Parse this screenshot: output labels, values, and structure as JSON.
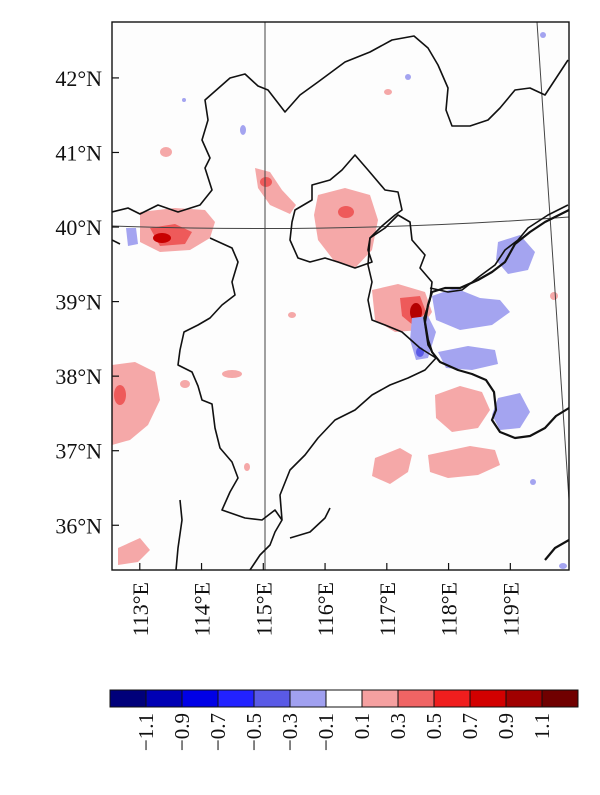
{
  "map": {
    "lat_labels": [
      "42°N",
      "41°N",
      "40°N",
      "39°N",
      "38°N",
      "37°N",
      "36°N"
    ],
    "lon_labels": [
      "113°E",
      "114°E",
      "115°E",
      "116°E",
      "117°E",
      "118°E",
      "119°E"
    ],
    "lat_values": [
      42,
      41,
      40,
      39,
      38,
      37,
      36
    ],
    "lon_values": [
      113,
      114,
      115,
      116,
      117,
      118,
      119
    ],
    "extent": {
      "lon_min": 112.55,
      "lon_max": 119.95,
      "lat_min": 35.4,
      "lat_max": 42.75
    },
    "graticule_lines": {
      "lon": 115,
      "lat": 40
    }
  },
  "colorbar": {
    "labels": [
      "−1.1",
      "−0.9",
      "−0.7",
      "−0.5",
      "−0.3",
      "−0.1",
      "0.1",
      "0.3",
      "0.5",
      "0.7",
      "0.9",
      "1.1"
    ],
    "colors": [
      "#00007a",
      "#0000b4",
      "#0000e6",
      "#2222ff",
      "#5a5ae6",
      "#a0a0f0",
      "#ffffff",
      "#f5a0a0",
      "#f06464",
      "#f01e1e",
      "#d20000",
      "#a00000",
      "#700000"
    ]
  }
}
